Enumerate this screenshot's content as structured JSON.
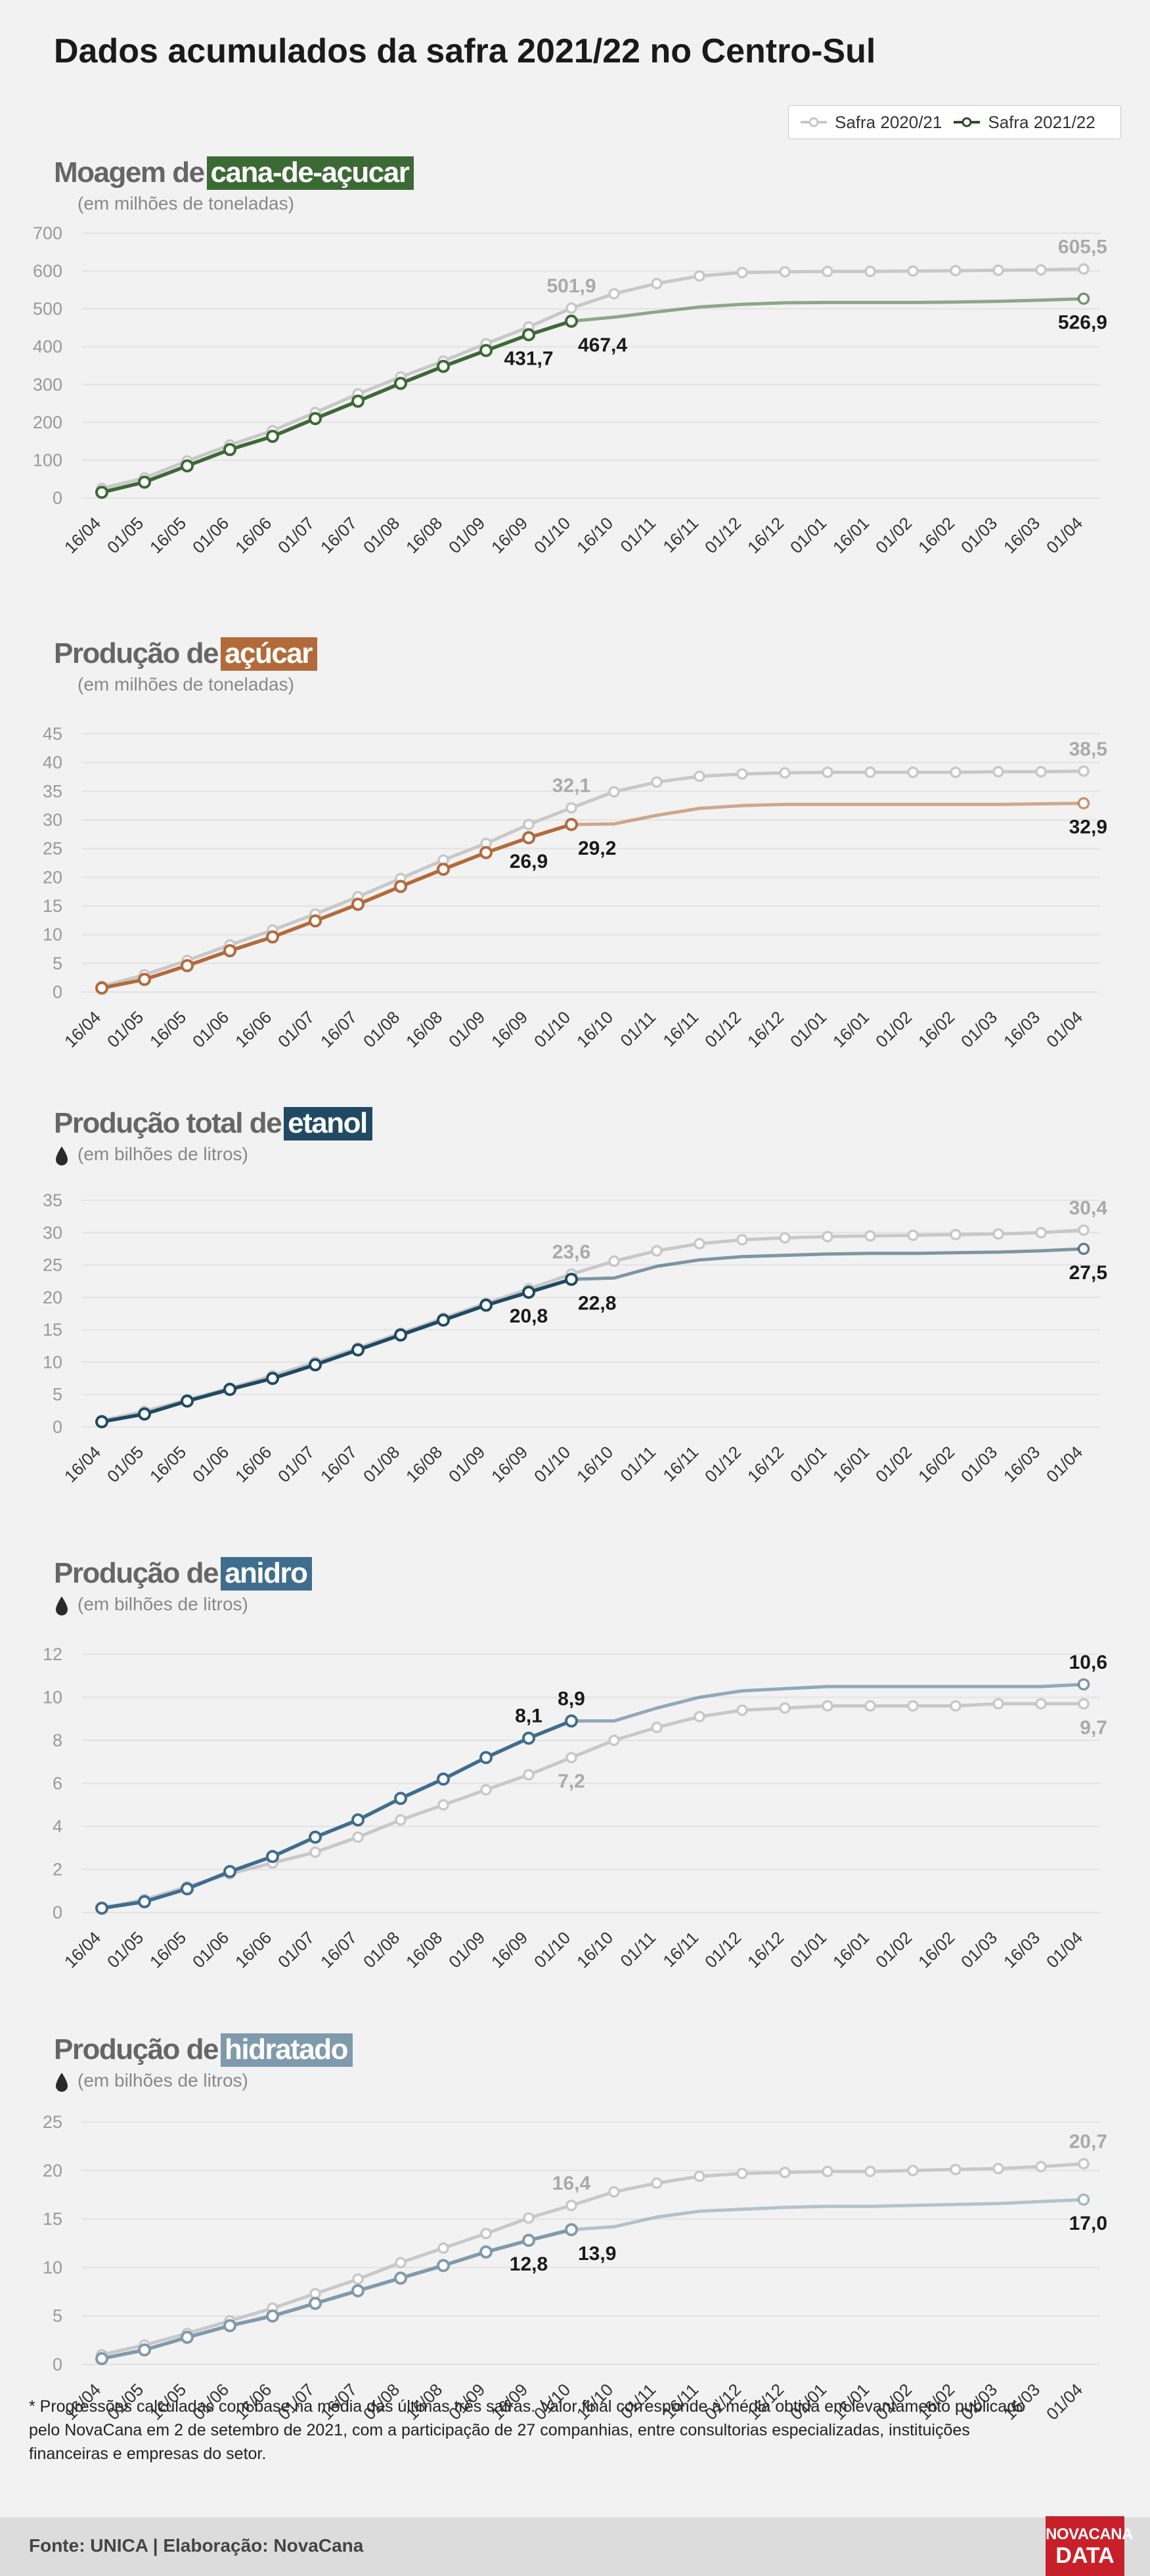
{
  "title": "Dados acumulados da safra 2021/22 no Centro-Sul",
  "legend": {
    "series_prev": "Safra 2020/21",
    "series_curr": "Safra 2021/22"
  },
  "footnote": "* Progressões calculadas com base na média das últimas três safras. Valor final corresponde à média obtida em levantamento publicado pelo NovaCana em  2 de setembro de 2021, com a participação de 27 companhias, entre consultorias especializadas, instituições financeiras e empresas do setor.",
  "source": "Fonte: UNICA | Elaboração: NovaCana",
  "logo": {
    "line1": "NOVACANA",
    "line2": "DATA"
  },
  "colors": {
    "prev": "#c8c8c8",
    "moagem": "#3c6a35",
    "acucar": "#b36a3a",
    "etanol": "#1f4a63",
    "anidro": "#3f6d8e",
    "hidratado": "#7f9aac"
  },
  "chart_data": [
    {
      "id": "moagem",
      "type": "line",
      "title_prefix": "Moagem de",
      "title_highlight": "cana-de-açucar",
      "subtitle": "(em milhões de toneladas)",
      "categories": [
        "16/04",
        "01/05",
        "16/05",
        "01/06",
        "16/06",
        "01/07",
        "16/07",
        "01/08",
        "16/08",
        "01/09",
        "16/09",
        "01/10",
        "16/10",
        "01/11",
        "16/11",
        "01/12",
        "16/12",
        "01/01",
        "16/01",
        "01/02",
        "16/02",
        "01/03",
        "16/03",
        "01/04"
      ],
      "yticks": [
        0,
        100,
        200,
        300,
        400,
        500,
        600,
        700
      ],
      "ylim": [
        0,
        700
      ],
      "series": [
        {
          "name": "Safra 2020/21",
          "values": [
            25,
            53,
            98,
            140,
            178,
            226,
            275,
            320,
            362,
            408,
            452,
            501.9,
            540,
            567,
            587,
            596,
            598,
            599,
            599,
            600,
            601,
            602,
            603,
            605.5
          ]
        },
        {
          "values": [
            15,
            42,
            85,
            128,
            163,
            210,
            256,
            303,
            348,
            390,
            431.7,
            467.4,
            null,
            null,
            null,
            null,
            null,
            null,
            null,
            null,
            null,
            null,
            null,
            null
          ]
        },
        {
          "values": [
            null,
            null,
            null,
            null,
            null,
            null,
            null,
            null,
            null,
            null,
            null,
            467.4,
            478,
            492,
            505,
            512,
            516,
            517,
            517,
            517,
            518,
            520,
            523,
            526.9
          ]
        }
      ],
      "labels": [
        {
          "text": "501,9",
          "series": 0,
          "index": 11,
          "pos": "above",
          "curr": false
        },
        {
          "text": "605,5",
          "series": 0,
          "index": 23,
          "pos": "above",
          "curr": false
        },
        {
          "text": "431,7",
          "series": 1,
          "index": 10,
          "pos": "below",
          "curr": true
        },
        {
          "text": "467,4",
          "series": 1,
          "index": 11,
          "pos": "below-right",
          "curr": true
        },
        {
          "text": "526,9",
          "series": 2,
          "index": 23,
          "pos": "below",
          "curr": true
        }
      ]
    },
    {
      "id": "acucar",
      "type": "line",
      "title_prefix": "Produção de",
      "title_highlight": "açúcar",
      "subtitle": "(em milhões de toneladas)",
      "categories": [
        "16/04",
        "01/05",
        "16/05",
        "01/06",
        "16/06",
        "01/07",
        "16/07",
        "01/08",
        "16/08",
        "01/09",
        "16/09",
        "01/10",
        "16/10",
        "01/11",
        "16/11",
        "01/12",
        "16/12",
        "01/01",
        "16/01",
        "01/02",
        "16/02",
        "01/03",
        "16/03",
        "01/04"
      ],
      "yticks": [
        0,
        5,
        10,
        15,
        20,
        25,
        30,
        35,
        40,
        45
      ],
      "ylim": [
        0,
        45
      ],
      "series": [
        {
          "name": "Safra 2020/21",
          "values": [
            1.0,
            3.0,
            5.5,
            8.2,
            10.8,
            13.6,
            16.6,
            19.8,
            23.0,
            25.9,
            29.2,
            32.1,
            34.9,
            36.6,
            37.6,
            38.0,
            38.2,
            38.3,
            38.3,
            38.3,
            38.3,
            38.4,
            38.4,
            38.5
          ]
        },
        {
          "values": [
            0.7,
            2.2,
            4.6,
            7.2,
            9.6,
            12.4,
            15.3,
            18.4,
            21.4,
            24.3,
            26.9,
            29.2,
            null,
            null,
            null,
            null,
            null,
            null,
            null,
            null,
            null,
            null,
            null,
            null
          ]
        },
        {
          "values": [
            null,
            null,
            null,
            null,
            null,
            null,
            null,
            null,
            null,
            null,
            null,
            29.2,
            29.3,
            30.8,
            32.0,
            32.5,
            32.7,
            32.7,
            32.7,
            32.7,
            32.7,
            32.7,
            32.8,
            32.9
          ]
        }
      ],
      "labels": [
        {
          "text": "32,1",
          "series": 0,
          "index": 11,
          "pos": "above",
          "curr": false
        },
        {
          "text": "38,5",
          "series": 0,
          "index": 23,
          "pos": "above",
          "curr": false
        },
        {
          "text": "26,9",
          "series": 1,
          "index": 10,
          "pos": "below",
          "curr": true
        },
        {
          "text": "29,2",
          "series": 1,
          "index": 11,
          "pos": "below-right",
          "curr": true
        },
        {
          "text": "32,9",
          "series": 2,
          "index": 23,
          "pos": "below",
          "curr": true
        }
      ]
    },
    {
      "id": "etanol",
      "type": "line",
      "title_prefix": "Produção total de",
      "title_highlight": "etanol",
      "subtitle": "(em bilhões de litros)",
      "categories": [
        "16/04",
        "01/05",
        "16/05",
        "01/06",
        "16/06",
        "01/07",
        "16/07",
        "01/08",
        "16/08",
        "01/09",
        "16/09",
        "01/10",
        "16/10",
        "01/11",
        "16/11",
        "01/12",
        "16/12",
        "01/01",
        "16/01",
        "01/02",
        "16/02",
        "01/03",
        "16/03",
        "01/04"
      ],
      "yticks": [
        0,
        5,
        10,
        15,
        20,
        25,
        30,
        35
      ],
      "ylim": [
        0,
        35
      ],
      "series": [
        {
          "name": "Safra 2020/21",
          "values": [
            1.0,
            2.4,
            4.2,
            6.0,
            7.9,
            10.0,
            12.2,
            14.5,
            16.8,
            19.1,
            21.3,
            23.6,
            25.6,
            27.2,
            28.3,
            28.9,
            29.2,
            29.4,
            29.5,
            29.6,
            29.7,
            29.8,
            30.0,
            30.4
          ]
        },
        {
          "values": [
            0.8,
            2.0,
            4.0,
            5.8,
            7.5,
            9.6,
            11.9,
            14.2,
            16.5,
            18.8,
            20.8,
            22.8,
            null,
            null,
            null,
            null,
            null,
            null,
            null,
            null,
            null,
            null,
            null,
            null
          ]
        },
        {
          "values": [
            null,
            null,
            null,
            null,
            null,
            null,
            null,
            null,
            null,
            null,
            null,
            22.8,
            23.0,
            24.8,
            25.8,
            26.3,
            26.5,
            26.7,
            26.8,
            26.8,
            26.9,
            27.0,
            27.2,
            27.5
          ]
        }
      ],
      "labels": [
        {
          "text": "23,6",
          "series": 0,
          "index": 11,
          "pos": "above",
          "curr": false
        },
        {
          "text": "30,4",
          "series": 0,
          "index": 23,
          "pos": "above",
          "curr": false
        },
        {
          "text": "20,8",
          "series": 1,
          "index": 10,
          "pos": "below",
          "curr": true
        },
        {
          "text": "22,8",
          "series": 1,
          "index": 11,
          "pos": "below-right",
          "curr": true
        },
        {
          "text": "27,5",
          "series": 2,
          "index": 23,
          "pos": "below",
          "curr": true
        }
      ]
    },
    {
      "id": "anidro",
      "type": "line",
      "title_prefix": "Produção de",
      "title_highlight": "anidro",
      "subtitle": "(em bilhões de litros)",
      "categories": [
        "16/04",
        "01/05",
        "16/05",
        "01/06",
        "16/06",
        "01/07",
        "16/07",
        "01/08",
        "16/08",
        "01/09",
        "16/09",
        "01/10",
        "16/10",
        "01/11",
        "16/11",
        "01/12",
        "16/12",
        "01/01",
        "16/01",
        "01/02",
        "16/02",
        "01/03",
        "16/03",
        "01/04"
      ],
      "yticks": [
        0,
        2,
        4,
        6,
        8,
        10,
        12
      ],
      "ylim": [
        0,
        12
      ],
      "series": [
        {
          "name": "Safra 2020/21",
          "values": [
            0.2,
            0.6,
            1.2,
            1.8,
            2.3,
            2.8,
            3.5,
            4.3,
            5.0,
            5.7,
            6.4,
            7.2,
            8.0,
            8.6,
            9.1,
            9.4,
            9.5,
            9.6,
            9.6,
            9.6,
            9.6,
            9.7,
            9.7,
            9.7
          ]
        },
        {
          "values": [
            0.2,
            0.5,
            1.1,
            1.9,
            2.6,
            3.5,
            4.3,
            5.3,
            6.2,
            7.2,
            8.1,
            8.9,
            null,
            null,
            null,
            null,
            null,
            null,
            null,
            null,
            null,
            null,
            null,
            null
          ]
        },
        {
          "values": [
            null,
            null,
            null,
            null,
            null,
            null,
            null,
            null,
            null,
            null,
            null,
            8.9,
            8.9,
            9.5,
            10.0,
            10.3,
            10.4,
            10.5,
            10.5,
            10.5,
            10.5,
            10.5,
            10.5,
            10.6
          ]
        }
      ],
      "labels": [
        {
          "text": "7,2",
          "series": 0,
          "index": 11,
          "pos": "below",
          "curr": false
        },
        {
          "text": "9,7",
          "series": 0,
          "index": 23,
          "pos": "below",
          "curr": false
        },
        {
          "text": "8,1",
          "series": 1,
          "index": 10,
          "pos": "above",
          "curr": true
        },
        {
          "text": "8,9",
          "series": 1,
          "index": 11,
          "pos": "above",
          "curr": true
        },
        {
          "text": "10,6",
          "series": 2,
          "index": 23,
          "pos": "above",
          "curr": true
        }
      ]
    },
    {
      "id": "hidratado",
      "type": "line",
      "title_prefix": "Produção de",
      "title_highlight": "hidratado",
      "subtitle": "(em bilhões de litros)",
      "categories": [
        "16/04",
        "01/05",
        "16/05",
        "01/06",
        "16/06",
        "01/07",
        "16/07",
        "01/08",
        "16/08",
        "01/09",
        "16/09",
        "01/10",
        "16/10",
        "01/11",
        "16/11",
        "01/12",
        "16/12",
        "01/01",
        "16/01",
        "01/02",
        "16/02",
        "01/03",
        "16/03",
        "01/04"
      ],
      "yticks": [
        0,
        5,
        10,
        15,
        20,
        25
      ],
      "ylim": [
        0,
        25
      ],
      "series": [
        {
          "name": "Safra 2020/21",
          "values": [
            1.0,
            2.0,
            3.2,
            4.5,
            5.8,
            7.3,
            8.8,
            10.5,
            12.0,
            13.5,
            15.1,
            16.4,
            17.8,
            18.7,
            19.4,
            19.7,
            19.8,
            19.9,
            19.9,
            20.0,
            20.1,
            20.2,
            20.4,
            20.7
          ]
        },
        {
          "values": [
            0.6,
            1.5,
            2.8,
            4.0,
            5.0,
            6.3,
            7.6,
            8.9,
            10.2,
            11.6,
            12.8,
            13.9,
            null,
            null,
            null,
            null,
            null,
            null,
            null,
            null,
            null,
            null,
            null,
            null
          ]
        },
        {
          "values": [
            null,
            null,
            null,
            null,
            null,
            null,
            null,
            null,
            null,
            null,
            null,
            13.9,
            14.2,
            15.2,
            15.8,
            16.0,
            16.2,
            16.3,
            16.3,
            16.4,
            16.5,
            16.6,
            16.8,
            17.0
          ]
        }
      ],
      "labels": [
        {
          "text": "16,4",
          "series": 0,
          "index": 11,
          "pos": "above",
          "curr": false
        },
        {
          "text": "20,7",
          "series": 0,
          "index": 23,
          "pos": "above",
          "curr": false
        },
        {
          "text": "12,8",
          "series": 1,
          "index": 10,
          "pos": "below",
          "curr": true
        },
        {
          "text": "13,9",
          "series": 1,
          "index": 11,
          "pos": "below-right",
          "curr": true
        },
        {
          "text": "17,0",
          "series": 2,
          "index": 23,
          "pos": "below",
          "curr": true
        }
      ]
    }
  ]
}
